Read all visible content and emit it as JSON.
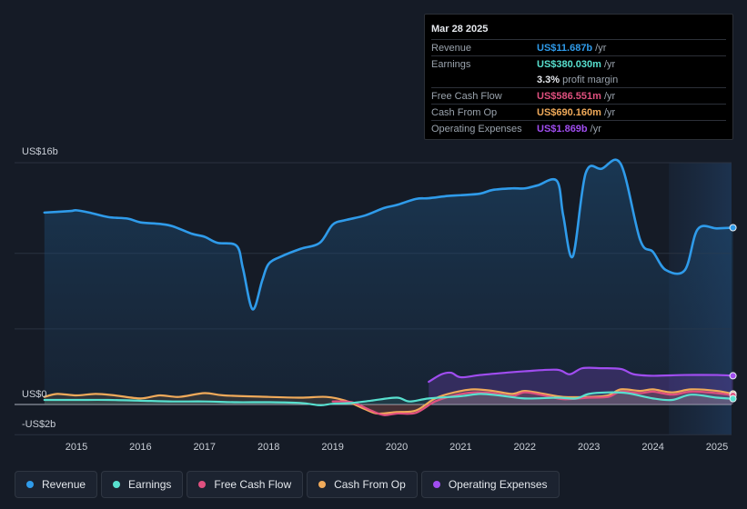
{
  "tooltip": {
    "date": "Mar 28 2025",
    "rows": [
      {
        "label": "Revenue",
        "value": "US$11.687b",
        "suffix": "/yr",
        "color": "#2f9bea"
      },
      {
        "label": "Earnings",
        "value": "US$380.030m",
        "suffix": "/yr",
        "color": "#58e0cf"
      },
      {
        "label": "",
        "value": "3.3%",
        "suffix": "profit margin",
        "color": "#e6e9ee"
      },
      {
        "label": "Free Cash Flow",
        "value": "US$586.551m",
        "suffix": "/yr",
        "color": "#e0507f"
      },
      {
        "label": "Cash From Op",
        "value": "US$690.160m",
        "suffix": "/yr",
        "color": "#f0aa5a"
      },
      {
        "label": "Operating Expenses",
        "value": "US$1.869b",
        "suffix": "/yr",
        "color": "#a04df0"
      }
    ]
  },
  "legend": [
    {
      "label": "Revenue",
      "color": "#2f9bea"
    },
    {
      "label": "Earnings",
      "color": "#58e0cf"
    },
    {
      "label": "Free Cash Flow",
      "color": "#e0507f"
    },
    {
      "label": "Cash From Op",
      "color": "#f0aa5a"
    },
    {
      "label": "Operating Expenses",
      "color": "#a04df0"
    }
  ],
  "chart_data": {
    "type": "area",
    "y_axis_labels": {
      "top": "US$16b",
      "zero": "US$0",
      "bottom": "-US$2b"
    },
    "ylim": [
      -2,
      16
    ],
    "xlim": [
      2014.5,
      2025.25
    ],
    "x_ticks": [
      "2015",
      "2016",
      "2017",
      "2018",
      "2019",
      "2020",
      "2021",
      "2022",
      "2023",
      "2024",
      "2025"
    ],
    "x_tick_values": [
      2015,
      2016,
      2017,
      2018,
      2019,
      2020,
      2021,
      2022,
      2023,
      2024,
      2025
    ],
    "gridlines": [
      16,
      10,
      5,
      0,
      -2
    ],
    "forecast_shade_start": 2024.25,
    "series": [
      {
        "name": "Revenue",
        "color": "#2f9bea",
        "points": [
          [
            2014.5,
            12.7
          ],
          [
            2014.9,
            12.8
          ],
          [
            2015.0,
            12.85
          ],
          [
            2015.2,
            12.7
          ],
          [
            2015.5,
            12.4
          ],
          [
            2015.8,
            12.3
          ],
          [
            2016.0,
            12.05
          ],
          [
            2016.3,
            11.95
          ],
          [
            2016.5,
            11.8
          ],
          [
            2016.8,
            11.3
          ],
          [
            2017.0,
            11.1
          ],
          [
            2017.2,
            10.7
          ],
          [
            2017.5,
            10.5
          ],
          [
            2017.6,
            9.0
          ],
          [
            2017.75,
            6.3
          ],
          [
            2017.9,
            8.2
          ],
          [
            2018.0,
            9.3
          ],
          [
            2018.2,
            9.8
          ],
          [
            2018.5,
            10.3
          ],
          [
            2018.8,
            10.7
          ],
          [
            2019.0,
            11.9
          ],
          [
            2019.2,
            12.2
          ],
          [
            2019.5,
            12.5
          ],
          [
            2019.8,
            13.0
          ],
          [
            2020.0,
            13.2
          ],
          [
            2020.3,
            13.6
          ],
          [
            2020.5,
            13.65
          ],
          [
            2020.8,
            13.8
          ],
          [
            2021.0,
            13.85
          ],
          [
            2021.3,
            13.95
          ],
          [
            2021.5,
            14.2
          ],
          [
            2021.8,
            14.3
          ],
          [
            2022.0,
            14.3
          ],
          [
            2022.2,
            14.5
          ],
          [
            2022.5,
            14.8
          ],
          [
            2022.6,
            12.5
          ],
          [
            2022.75,
            9.8
          ],
          [
            2022.95,
            15.3
          ],
          [
            2023.2,
            15.6
          ],
          [
            2023.5,
            15.9
          ],
          [
            2023.8,
            10.9
          ],
          [
            2024.0,
            10.1
          ],
          [
            2024.2,
            8.9
          ],
          [
            2024.5,
            8.9
          ],
          [
            2024.7,
            11.6
          ],
          [
            2025.0,
            11.65
          ],
          [
            2025.25,
            11.7
          ]
        ]
      },
      {
        "name": "Operating Expenses",
        "color": "#a04df0",
        "points": [
          [
            2020.5,
            1.5
          ],
          [
            2020.7,
            2.0
          ],
          [
            2020.85,
            2.1
          ],
          [
            2021.0,
            1.8
          ],
          [
            2021.3,
            1.95
          ],
          [
            2021.7,
            2.1
          ],
          [
            2022.0,
            2.2
          ],
          [
            2022.5,
            2.3
          ],
          [
            2022.7,
            2.0
          ],
          [
            2022.9,
            2.4
          ],
          [
            2023.2,
            2.4
          ],
          [
            2023.5,
            2.35
          ],
          [
            2023.7,
            2.0
          ],
          [
            2024.0,
            1.9
          ],
          [
            2024.5,
            1.95
          ],
          [
            2025.0,
            1.95
          ],
          [
            2025.25,
            1.9
          ]
        ]
      },
      {
        "name": "Cash From Op",
        "color": "#f0aa5a",
        "points": [
          [
            2014.5,
            0.5
          ],
          [
            2014.7,
            0.7
          ],
          [
            2015.0,
            0.6
          ],
          [
            2015.3,
            0.7
          ],
          [
            2015.6,
            0.6
          ],
          [
            2016.0,
            0.4
          ],
          [
            2016.3,
            0.6
          ],
          [
            2016.6,
            0.5
          ],
          [
            2017.0,
            0.75
          ],
          [
            2017.3,
            0.6
          ],
          [
            2018.0,
            0.5
          ],
          [
            2018.5,
            0.45
          ],
          [
            2018.9,
            0.5
          ],
          [
            2019.2,
            0.25
          ],
          [
            2019.5,
            -0.3
          ],
          [
            2019.7,
            -0.6
          ],
          [
            2020.0,
            -0.5
          ],
          [
            2020.3,
            -0.4
          ],
          [
            2020.6,
            0.4
          ],
          [
            2020.9,
            0.8
          ],
          [
            2021.2,
            1.0
          ],
          [
            2021.5,
            0.9
          ],
          [
            2021.8,
            0.7
          ],
          [
            2022.0,
            0.9
          ],
          [
            2022.3,
            0.7
          ],
          [
            2022.6,
            0.5
          ],
          [
            2023.0,
            0.5
          ],
          [
            2023.3,
            0.6
          ],
          [
            2023.5,
            1.0
          ],
          [
            2023.8,
            0.9
          ],
          [
            2024.0,
            1.0
          ],
          [
            2024.3,
            0.8
          ],
          [
            2024.6,
            1.0
          ],
          [
            2025.0,
            0.9
          ],
          [
            2025.25,
            0.7
          ]
        ]
      },
      {
        "name": "Free Cash Flow",
        "color": "#e0507f",
        "points": [
          [
            2019.0,
            0.2
          ],
          [
            2019.3,
            0.15
          ],
          [
            2019.6,
            -0.4
          ],
          [
            2019.8,
            -0.7
          ],
          [
            2020.0,
            -0.6
          ],
          [
            2020.3,
            -0.55
          ],
          [
            2020.6,
            0.2
          ],
          [
            2020.9,
            0.6
          ],
          [
            2021.2,
            0.8
          ],
          [
            2021.5,
            0.75
          ],
          [
            2021.8,
            0.55
          ],
          [
            2022.0,
            0.8
          ],
          [
            2022.3,
            0.6
          ],
          [
            2022.6,
            0.35
          ],
          [
            2023.0,
            0.45
          ],
          [
            2023.3,
            0.5
          ],
          [
            2023.5,
            0.85
          ],
          [
            2023.8,
            0.75
          ],
          [
            2024.0,
            0.85
          ],
          [
            2024.3,
            0.65
          ],
          [
            2024.6,
            0.85
          ],
          [
            2025.0,
            0.75
          ],
          [
            2025.25,
            0.6
          ]
        ]
      },
      {
        "name": "Earnings",
        "color": "#58e0cf",
        "points": [
          [
            2014.5,
            0.3
          ],
          [
            2015.0,
            0.3
          ],
          [
            2015.5,
            0.3
          ],
          [
            2016.0,
            0.25
          ],
          [
            2016.5,
            0.2
          ],
          [
            2017.0,
            0.2
          ],
          [
            2017.5,
            0.15
          ],
          [
            2018.0,
            0.15
          ],
          [
            2018.5,
            0.1
          ],
          [
            2018.8,
            -0.05
          ],
          [
            2019.0,
            0.05
          ],
          [
            2019.3,
            0.1
          ],
          [
            2019.6,
            0.25
          ],
          [
            2020.0,
            0.45
          ],
          [
            2020.2,
            0.2
          ],
          [
            2020.5,
            0.4
          ],
          [
            2021.0,
            0.55
          ],
          [
            2021.3,
            0.7
          ],
          [
            2021.6,
            0.6
          ],
          [
            2022.0,
            0.4
          ],
          [
            2022.5,
            0.45
          ],
          [
            2022.8,
            0.4
          ],
          [
            2023.0,
            0.7
          ],
          [
            2023.3,
            0.8
          ],
          [
            2023.6,
            0.75
          ],
          [
            2024.0,
            0.4
          ],
          [
            2024.3,
            0.3
          ],
          [
            2024.6,
            0.65
          ],
          [
            2025.0,
            0.45
          ],
          [
            2025.25,
            0.38
          ]
        ]
      }
    ]
  }
}
